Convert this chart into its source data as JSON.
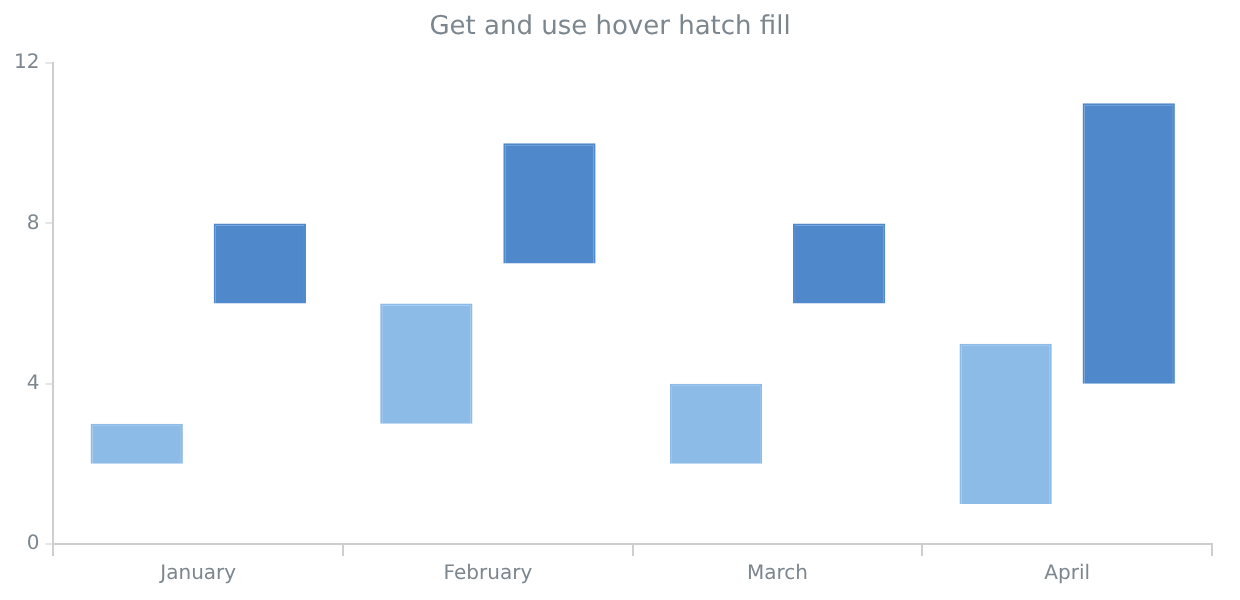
{
  "chart_data": {
    "type": "bar",
    "title": "Get and use hover hatch fill",
    "categories": [
      "January",
      "February",
      "March",
      "April"
    ],
    "series": [
      {
        "color": "#8cbbe8",
        "values": [
          1,
          3,
          2,
          4
        ],
        "base": [
          2,
          3,
          2,
          1
        ]
      },
      {
        "color": "#4f89cc",
        "values": [
          2,
          3,
          2,
          7
        ],
        "base": [
          6,
          7,
          6,
          4
        ]
      }
    ],
    "ylim": [
      0,
      12
    ],
    "yticks": [
      0,
      4,
      8,
      12
    ]
  }
}
